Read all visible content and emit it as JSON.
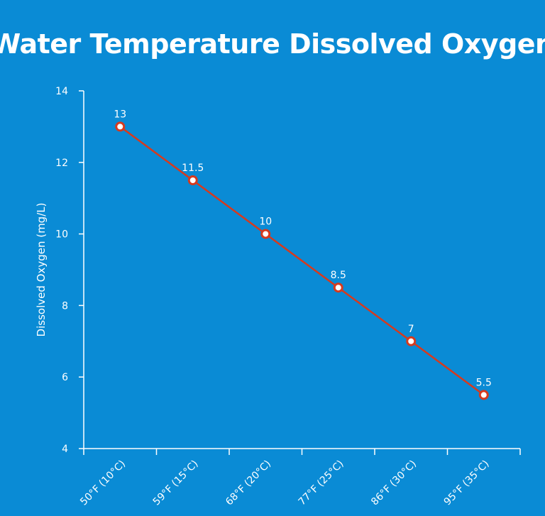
{
  "chart_data": {
    "type": "line",
    "title": "Water Temperature Dissolved Oxygen",
    "xlabel": "",
    "ylabel": "Dissolved Oxygen (mg/L)",
    "categories": [
      "50°F (10°C)",
      "59°F (15°C)",
      "68°F (20°C)",
      "77°F (25°C)",
      "86°F (30°C)",
      "95°F (35°C)"
    ],
    "series": [
      {
        "name": "Dissolved Oxygen",
        "values": [
          13,
          11.5,
          10,
          8.5,
          7,
          5.5
        ],
        "data_labels": [
          "13",
          "11.5",
          "10",
          "8.5",
          "7",
          "5.5"
        ],
        "color": "#d63a1e"
      }
    ],
    "ylim": [
      4,
      14
    ],
    "yticks": [
      4,
      6,
      8,
      10,
      12,
      14
    ],
    "grid": false,
    "legend": "none",
    "colors": {
      "background": "#0a8bd5",
      "foreground": "#ffffff",
      "series": "#d63a1e"
    }
  }
}
